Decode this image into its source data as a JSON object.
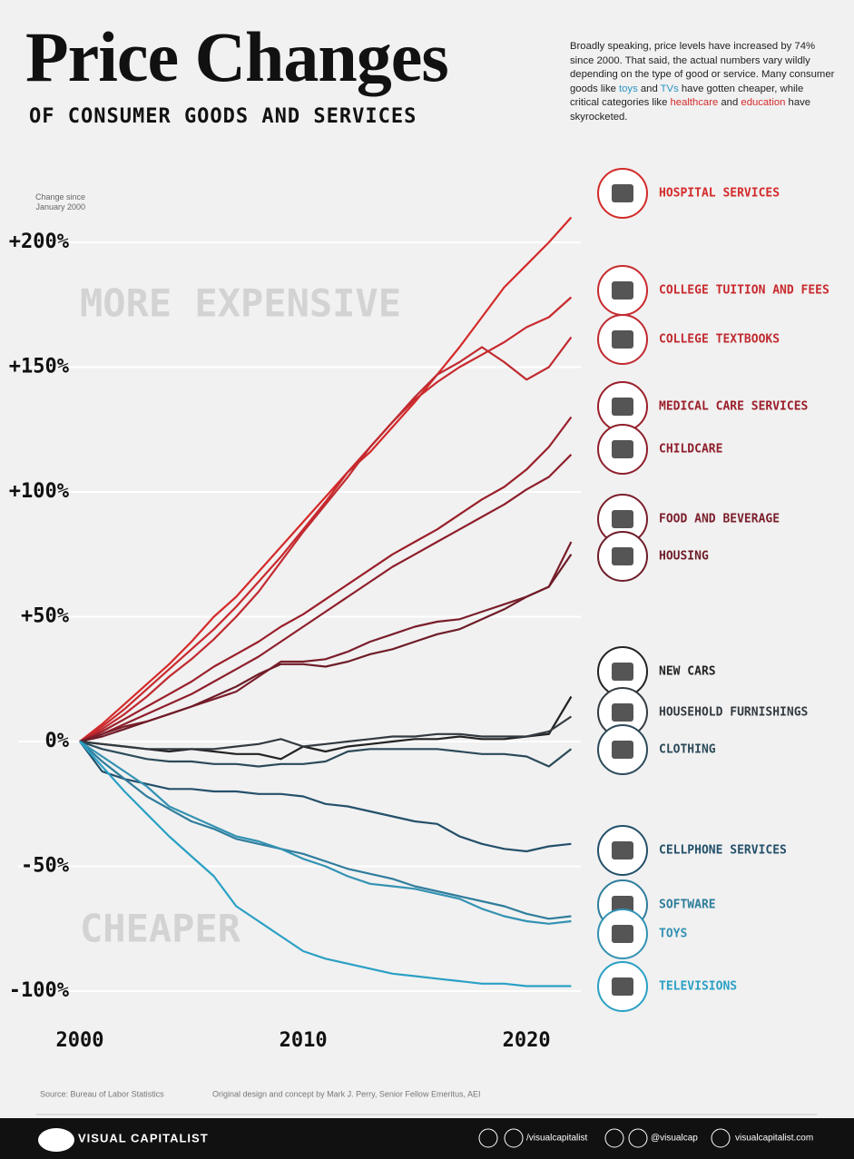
{
  "header": {
    "title": "Price Changes",
    "subtitle": "OF CONSUMER GOODS AND SERVICES",
    "description": [
      "Broadly speaking, price levels have increased by 74% since 2000. That said, the actual numbers vary wildly depending on the type of good or service. Many consumer goods like ",
      "toys",
      " and ",
      "TVs",
      " have gotten cheaper, while critical categories like ",
      "healthcare",
      " and ",
      "education",
      " have skyrocketed."
    ]
  },
  "chart_data": {
    "type": "line",
    "y_label": "Change since January 2000",
    "annotations": [
      "MORE EXPENSIVE",
      "CHEAPER"
    ],
    "x": [
      2000,
      2001,
      2002,
      2003,
      2004,
      2005,
      2006,
      2007,
      2008,
      2009,
      2010,
      2011,
      2012,
      2013,
      2014,
      2015,
      2016,
      2017,
      2018,
      2019,
      2020,
      2021,
      2022
    ],
    "xlim": [
      2000,
      2023
    ],
    "xticks": [
      2000,
      2010,
      2020
    ],
    "ylim": [
      -110,
      220
    ],
    "yticks": [
      {
        "value": -100,
        "label": "-100%"
      },
      {
        "value": -50,
        "label": "-50%"
      },
      {
        "value": 0,
        "label": "0%"
      },
      {
        "value": 50,
        "label": "+50%"
      },
      {
        "value": 100,
        "label": "+100%"
      },
      {
        "value": 150,
        "label": "+150%"
      },
      {
        "value": 200,
        "label": "+200%"
      }
    ],
    "grid": true,
    "series": [
      {
        "name": "HOSPITAL SERVICES",
        "color": "#d42a2a",
        "values": [
          0,
          7,
          15,
          23,
          31,
          40,
          50,
          58,
          68,
          78,
          88,
          98,
          108,
          116,
          126,
          136,
          147,
          158,
          170,
          182,
          191,
          200,
          210
        ]
      },
      {
        "name": "COLLEGE TUITION AND FEES",
        "color": "#c82a2e",
        "values": [
          0,
          6,
          13,
          21,
          29,
          37,
          45,
          54,
          64,
          74,
          85,
          96,
          108,
          118,
          128,
          137,
          144,
          150,
          155,
          160,
          166,
          170,
          178
        ]
      },
      {
        "name": "COLLEGE TEXTBOOKS",
        "color": "#c02a30",
        "values": [
          0,
          5,
          11,
          18,
          26,
          33,
          41,
          50,
          60,
          72,
          84,
          95,
          106,
          118,
          128,
          138,
          147,
          152,
          158,
          152,
          145,
          150,
          162
        ]
      },
      {
        "name": "MEDICAL CARE SERVICES",
        "color": "#9a1f2a",
        "values": [
          0,
          4,
          9,
          14,
          19,
          24,
          30,
          35,
          40,
          46,
          51,
          57,
          63,
          69,
          75,
          80,
          85,
          91,
          97,
          102,
          109,
          118,
          130
        ]
      },
      {
        "name": "CHILDCARE",
        "color": "#8e1f2b",
        "values": [
          0,
          3,
          7,
          11,
          15,
          19,
          24,
          29,
          34,
          40,
          46,
          52,
          58,
          64,
          70,
          75,
          80,
          85,
          90,
          95,
          101,
          106,
          115
        ]
      },
      {
        "name": "FOOD AND BEVERAGE",
        "color": "#7a1e2b",
        "values": [
          0,
          3,
          6,
          8,
          11,
          14,
          17,
          20,
          26,
          32,
          32,
          33,
          36,
          40,
          43,
          46,
          48,
          49,
          52,
          55,
          58,
          62,
          80
        ]
      },
      {
        "name": "HOUSING",
        "color": "#6e1c28",
        "values": [
          0,
          2,
          5,
          8,
          11,
          14,
          18,
          22,
          27,
          31,
          31,
          30,
          32,
          35,
          37,
          40,
          43,
          45,
          49,
          53,
          58,
          62,
          75
        ]
      },
      {
        "name": "NEW CARS",
        "color": "#222222",
        "values": [
          0,
          -1,
          -2,
          -3,
          -4,
          -3,
          -4,
          -5,
          -5,
          -7,
          -2,
          -4,
          -2,
          -1,
          0,
          1,
          1,
          2,
          1,
          1,
          2,
          3,
          18
        ]
      },
      {
        "name": "HOUSEHOLD FURNISHINGS",
        "color": "#333a40",
        "values": [
          0,
          -1,
          -2,
          -3,
          -3,
          -3,
          -3,
          -2,
          -1,
          1,
          -2,
          -1,
          0,
          1,
          2,
          2,
          3,
          3,
          2,
          2,
          2,
          4,
          10
        ]
      },
      {
        "name": "CLOTHING",
        "color": "#2c4a5a",
        "values": [
          0,
          -3,
          -5,
          -7,
          -8,
          -8,
          -9,
          -9,
          -10,
          -9,
          -9,
          -8,
          -4,
          -3,
          -3,
          -3,
          -3,
          -4,
          -5,
          -5,
          -6,
          -10,
          -3
        ]
      },
      {
        "name": "CELLPHONE SERVICES",
        "color": "#24506a",
        "values": [
          0,
          -12,
          -15,
          -17,
          -19,
          -19,
          -20,
          -20,
          -21,
          -21,
          -22,
          -25,
          -26,
          -28,
          -30,
          -32,
          -33,
          -38,
          -41,
          -43,
          -44,
          -42,
          -41
        ]
      },
      {
        "name": "SOFTWARE",
        "color": "#2f7d9c",
        "values": [
          0,
          -8,
          -15,
          -22,
          -27,
          -32,
          -35,
          -39,
          -41,
          -43,
          -45,
          -48,
          -51,
          -53,
          -55,
          -58,
          -60,
          -62,
          -64,
          -66,
          -69,
          -71,
          -70
        ]
      },
      {
        "name": "TOYS",
        "color": "#3392b3",
        "values": [
          0,
          -6,
          -12,
          -18,
          -26,
          -30,
          -34,
          -38,
          -40,
          -43,
          -47,
          -50,
          -54,
          -57,
          -58,
          -59,
          -61,
          -63,
          -67,
          -70,
          -72,
          -73,
          -72
        ]
      },
      {
        "name": "TELEVISIONS",
        "color": "#2aa0c4",
        "values": [
          0,
          -10,
          -20,
          -29,
          -38,
          -46,
          -54,
          -66,
          -72,
          -78,
          -84,
          -87,
          -89,
          -91,
          -93,
          -94,
          -95,
          -96,
          -97,
          -97,
          -98,
          -98,
          -98
        ]
      }
    ]
  },
  "footer": {
    "source": "Source: Bureau of Labor Statistics",
    "credit": "Original design and concept by Mark J. Perry, Senior Fellow Emeritus, AEI",
    "brand": "VISUAL CAPITALIST",
    "facebook": "/visualcapitalist",
    "instagram": "@visualcap",
    "site": "visualcapitalist.com"
  }
}
